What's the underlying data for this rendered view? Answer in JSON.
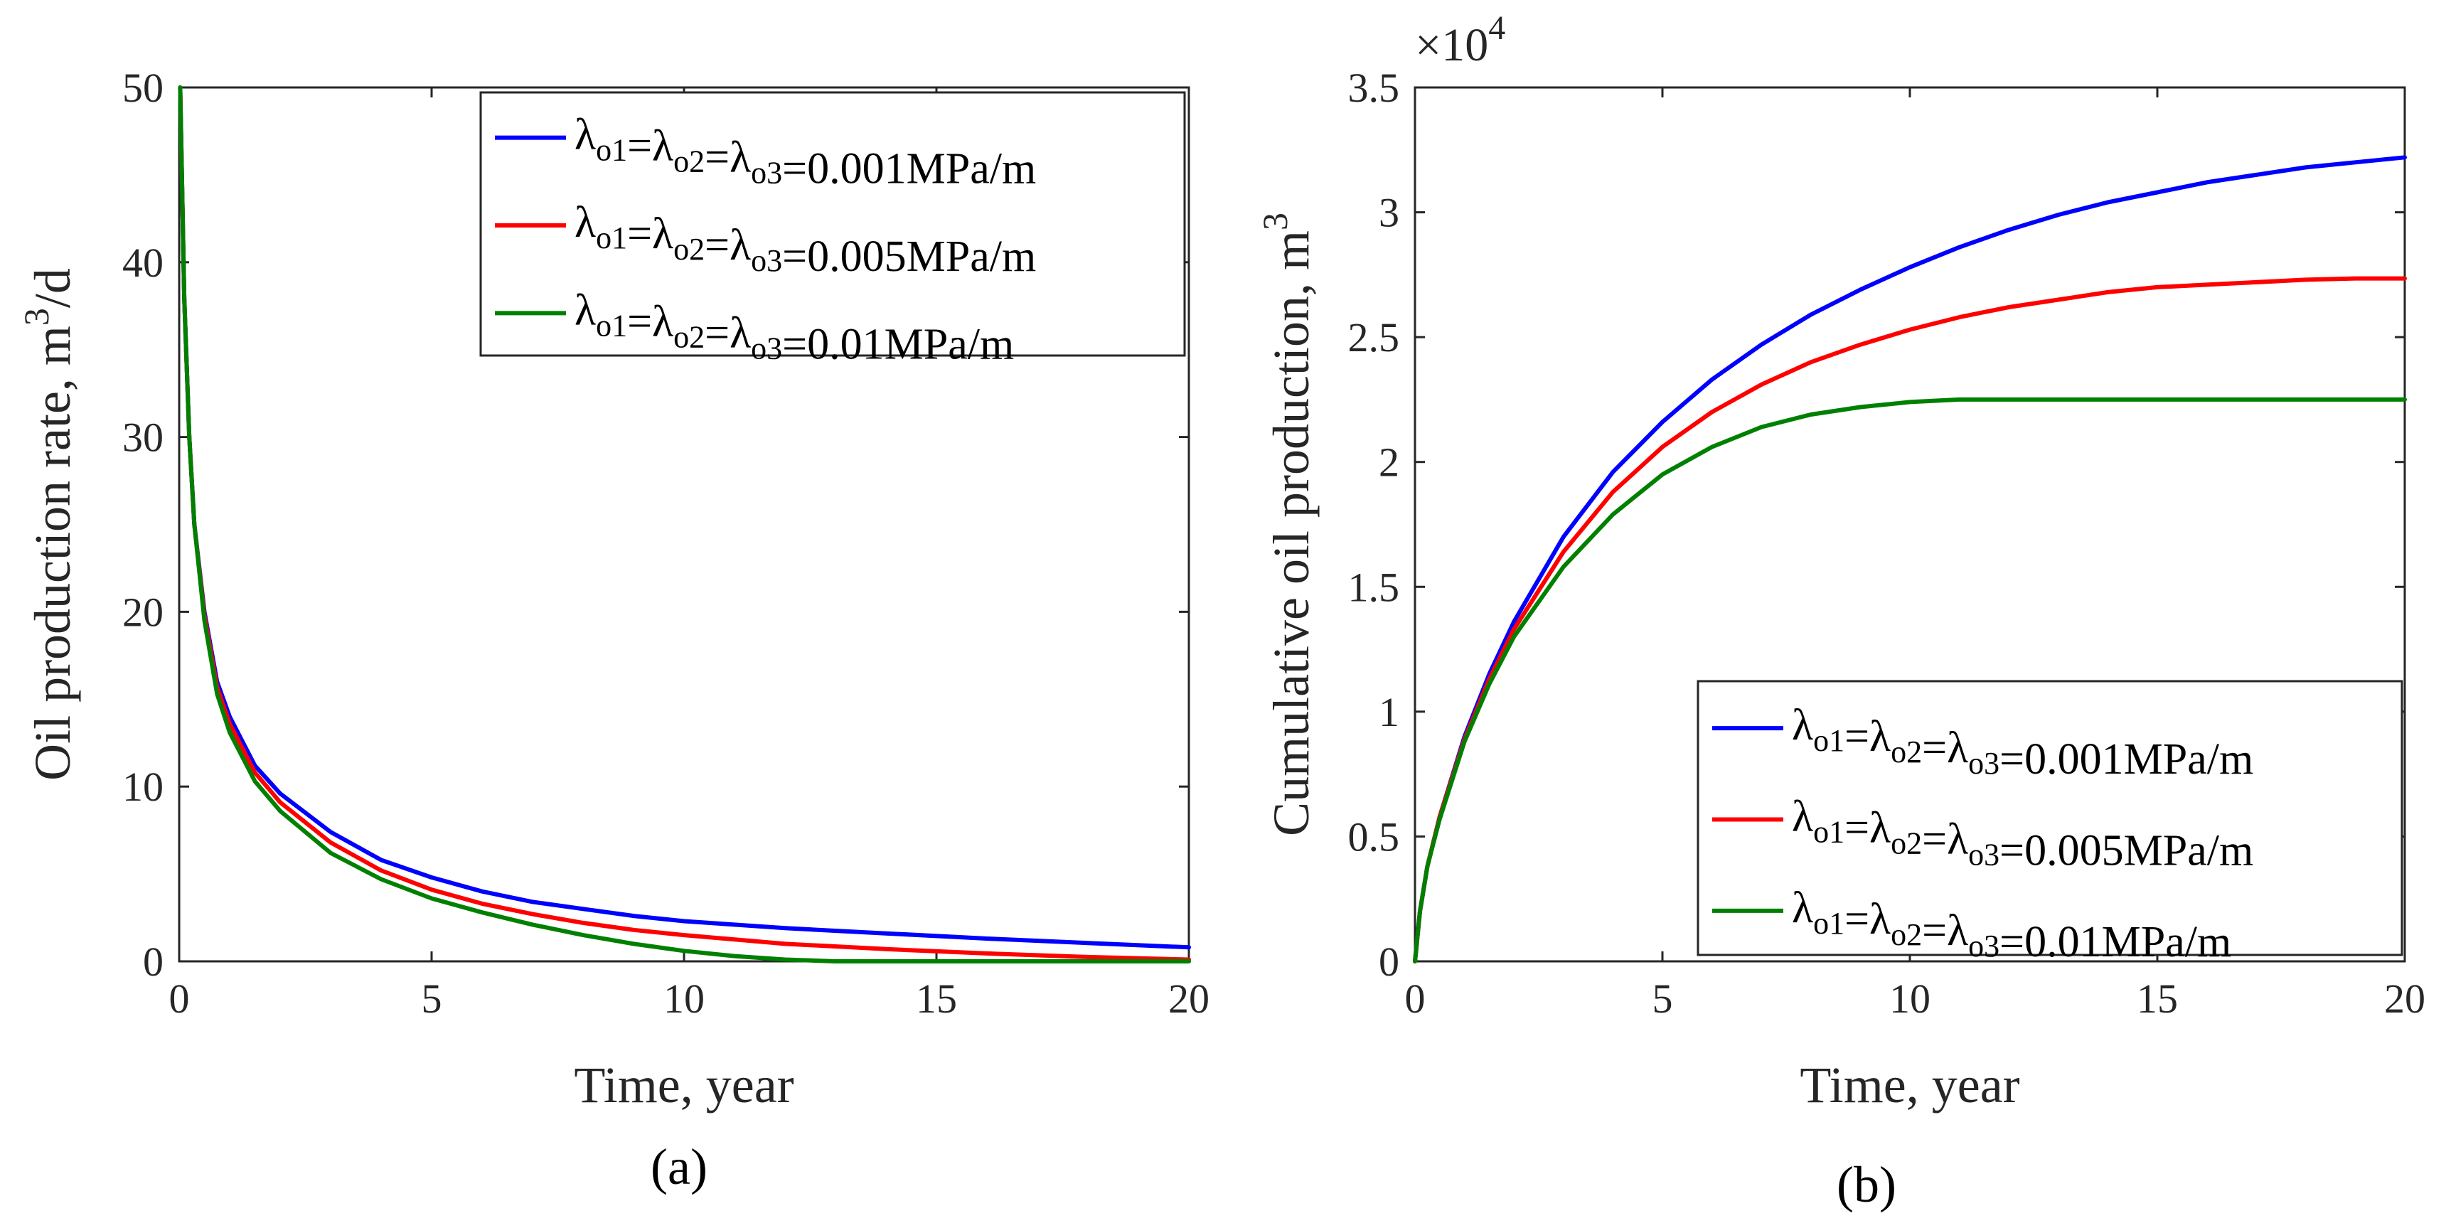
{
  "chart_data": [
    {
      "type": "line",
      "panel": "a",
      "caption": "(a)",
      "xlabel": "Time, year",
      "ylabel": "Oil production rate, m",
      "ylabel_sup": "3",
      "ylabel_tail": "/d",
      "xlim": [
        0,
        20
      ],
      "ylim": [
        0,
        50
      ],
      "xticks": [
        0,
        5,
        10,
        15,
        20
      ],
      "yticks": [
        0,
        10,
        20,
        30,
        40,
        50
      ],
      "grid": false,
      "legend_position": "top-right",
      "series": [
        {
          "name": "λo1=λo2=λo3=0.001MPa/m",
          "color": "#0000ff",
          "x": [
            0.02,
            0.1,
            0.2,
            0.3,
            0.5,
            0.75,
            1,
            1.5,
            2,
            3,
            4,
            5,
            6,
            7,
            8,
            9,
            10,
            12,
            14,
            16,
            18,
            20
          ],
          "y": [
            50,
            38,
            30,
            25,
            20,
            16,
            14,
            11.2,
            9.6,
            7.4,
            5.8,
            4.8,
            4.0,
            3.4,
            3.0,
            2.6,
            2.3,
            1.9,
            1.6,
            1.3,
            1.05,
            0.8
          ]
        },
        {
          "name": "λo1=λo2=λo3=0.005MPa/m",
          "color": "#ff0000",
          "x": [
            0.02,
            0.1,
            0.2,
            0.3,
            0.5,
            0.75,
            1,
            1.5,
            2,
            3,
            4,
            5,
            6,
            7,
            8,
            9,
            10,
            12,
            14,
            16,
            18,
            20
          ],
          "y": [
            50,
            38,
            30,
            25,
            19.8,
            15.7,
            13.6,
            10.8,
            9.1,
            6.8,
            5.2,
            4.1,
            3.3,
            2.7,
            2.2,
            1.8,
            1.5,
            1.0,
            0.7,
            0.45,
            0.25,
            0.1
          ]
        },
        {
          "name": "λo1=λo2=λo3=0.01MPa/m",
          "color": "#008000",
          "x": [
            0.02,
            0.1,
            0.2,
            0.3,
            0.5,
            0.75,
            1,
            1.5,
            2,
            3,
            4,
            5,
            6,
            7,
            8,
            9,
            10,
            11,
            12,
            13,
            14,
            16,
            18,
            20
          ],
          "y": [
            50,
            38,
            30,
            25,
            19.5,
            15.3,
            13.1,
            10.3,
            8.6,
            6.2,
            4.7,
            3.6,
            2.8,
            2.1,
            1.5,
            1.0,
            0.6,
            0.3,
            0.1,
            0,
            0,
            0,
            0,
            0
          ]
        }
      ]
    },
    {
      "type": "line",
      "panel": "b",
      "caption": "(b)",
      "xlabel": "Time, year",
      "ylabel": "Cumulative oil production, m",
      "ylabel_sup": "3",
      "ylabel_tail": "",
      "scale_label": "×10",
      "scale_exponent": "4",
      "xlim": [
        0,
        20
      ],
      "ylim": [
        0,
        3.5
      ],
      "xticks": [
        0,
        5,
        10,
        15,
        20
      ],
      "yticks": [
        0,
        0.5,
        1,
        1.5,
        2,
        2.5,
        3,
        3.5
      ],
      "grid": false,
      "legend_position": "bottom-right",
      "series": [
        {
          "name": "λo1=λo2=λo3=0.001MPa/m",
          "color": "#0000ff",
          "x": [
            0,
            0.1,
            0.25,
            0.5,
            1,
            1.5,
            2,
            3,
            4,
            5,
            6,
            7,
            8,
            9,
            10,
            11,
            12,
            13,
            14,
            15,
            16,
            17,
            18,
            19,
            20
          ],
          "y": [
            0,
            0.2,
            0.38,
            0.58,
            0.9,
            1.15,
            1.36,
            1.7,
            1.96,
            2.16,
            2.33,
            2.47,
            2.59,
            2.69,
            2.78,
            2.86,
            2.93,
            2.99,
            3.04,
            3.08,
            3.12,
            3.15,
            3.18,
            3.2,
            3.22
          ]
        },
        {
          "name": "λo1=λo2=λo3=0.005MPa/m",
          "color": "#ff0000",
          "x": [
            0,
            0.1,
            0.25,
            0.5,
            1,
            1.5,
            2,
            3,
            4,
            5,
            6,
            7,
            8,
            9,
            10,
            11,
            12,
            13,
            14,
            15,
            16,
            17,
            18,
            19,
            20
          ],
          "y": [
            0,
            0.2,
            0.38,
            0.58,
            0.89,
            1.13,
            1.33,
            1.64,
            1.88,
            2.06,
            2.2,
            2.31,
            2.4,
            2.47,
            2.53,
            2.58,
            2.62,
            2.65,
            2.68,
            2.7,
            2.71,
            2.72,
            2.73,
            2.735,
            2.735
          ]
        },
        {
          "name": "λo1=λo2=λo3=0.01MPa/m",
          "color": "#008000",
          "x": [
            0,
            0.1,
            0.25,
            0.5,
            1,
            1.5,
            2,
            3,
            4,
            5,
            6,
            7,
            8,
            9,
            10,
            11,
            12,
            13,
            14,
            16,
            18,
            20
          ],
          "y": [
            0,
            0.2,
            0.38,
            0.57,
            0.88,
            1.11,
            1.3,
            1.58,
            1.79,
            1.95,
            2.06,
            2.14,
            2.19,
            2.22,
            2.24,
            2.25,
            2.25,
            2.25,
            2.25,
            2.25,
            2.25,
            2.25
          ]
        }
      ]
    }
  ]
}
